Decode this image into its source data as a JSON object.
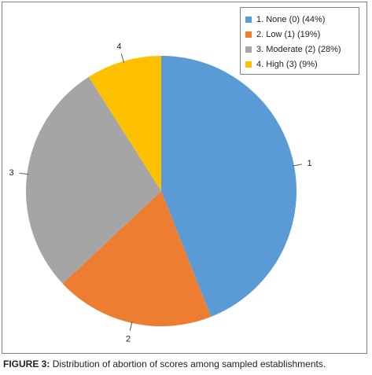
{
  "chart_data": {
    "type": "pie",
    "categories": [
      "1",
      "2",
      "3",
      "4"
    ],
    "values": [
      44,
      19,
      28,
      9
    ],
    "colors": [
      "#5b9bd5",
      "#ed7d31",
      "#a5a5a5",
      "#ffc000"
    ],
    "legend": [
      "1. None (0) (44%)",
      "2. Low (1) (19%)",
      "3. Moderate (2) (28%)",
      "4. High (3) (9%)"
    ],
    "legend_position": "top-right",
    "start_angle_deg": 0,
    "direction": "clockwise"
  },
  "caption": {
    "label": "FIGURE 3:",
    "text": "Distribution of abortion of scores among sampled establishments."
  }
}
